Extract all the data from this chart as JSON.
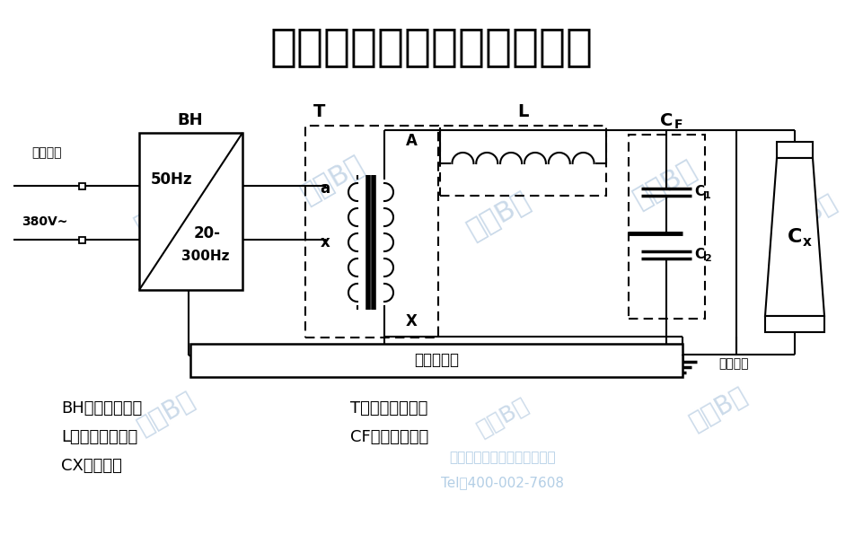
{
  "title": "发电机交流耐压试验原理图",
  "title_fontsize": 36,
  "bg_color": "#ffffff",
  "line_color": "#000000",
  "legend": [
    [
      "BH：变频电源；",
      "T：励磁变压器；"
    ],
    [
      "L：电抗器组合；",
      "CF：电容分压器"
    ],
    [
      "CX：被试品",
      ""
    ]
  ],
  "watermark_text": "电站B超",
  "bottom_text1": "变电站电力试验设备生产厂家",
  "bottom_text2": "Tel：400-002-7608"
}
